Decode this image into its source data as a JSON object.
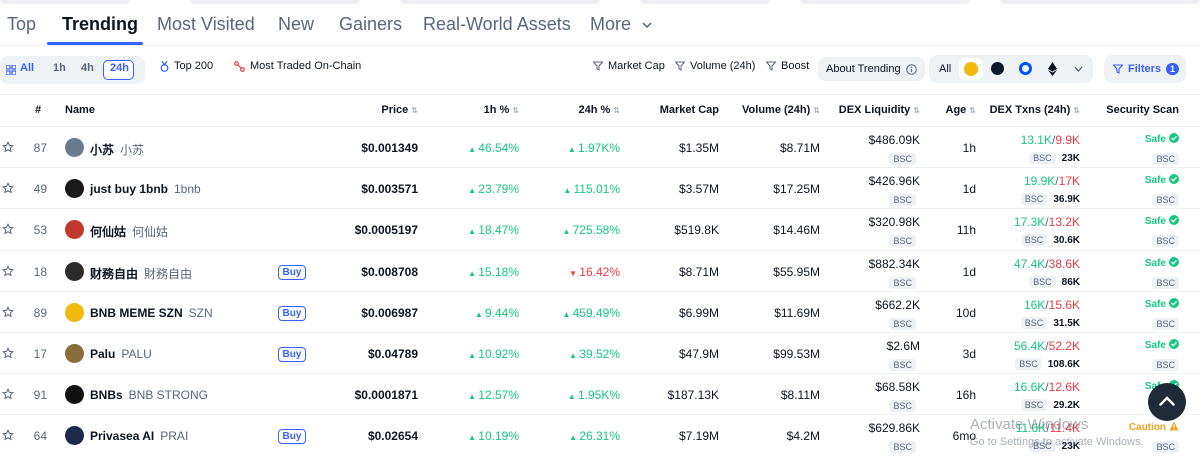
{
  "nav": {
    "tabs": [
      {
        "label": "Top",
        "active": false
      },
      {
        "label": "Trending",
        "active": true
      },
      {
        "label": "Most Visited",
        "active": false
      },
      {
        "label": "New",
        "active": false
      },
      {
        "label": "Gainers",
        "active": false
      },
      {
        "label": "Real-World Assets",
        "active": false
      }
    ],
    "more_label": "More"
  },
  "filter_bar": {
    "time_filters": [
      "All",
      "1h",
      "4h",
      "24h"
    ],
    "selected_time": "24h",
    "top200_label": "Top 200",
    "most_traded_label": "Most Traded On-Chain",
    "market_cap_label": "Market Cap",
    "volume_label": "Volume (24h)",
    "boost_label": "Boost",
    "about_label": "About Trending",
    "chain_all_label": "All",
    "filters_label": "Filters",
    "filters_count": "1"
  },
  "table": {
    "headers": {
      "rank": "#",
      "name": "Name",
      "price": "Price",
      "change_1h": "1h %",
      "change_24h": "24h %",
      "market_cap": "Market Cap",
      "volume": "Volume (24h)",
      "dex_liquidity": "DEX Liquidity",
      "age": "Age",
      "dex_txns": "DEX Txns (24h)",
      "security": "Security Scan"
    },
    "rows": [
      {
        "rank": "87",
        "name": "小苏",
        "symbol": "小苏",
        "buy": false,
        "price": "$0.001349",
        "ch1h": "46.54%",
        "ch1h_dir": "up",
        "ch24h": "1.97K%",
        "ch24h_dir": "up",
        "market_cap": "$1.35M",
        "volume": "$8.71M",
        "liquidity": "$486.09K",
        "chain": "BSC",
        "age": "1h",
        "buys": "13.1K",
        "sells": "9.9K",
        "txns_total": "23K",
        "security": "Safe",
        "logo_color": "#6b7b8f"
      },
      {
        "rank": "49",
        "name": "just buy 1bnb",
        "symbol": "1bnb",
        "buy": false,
        "price": "$0.003571",
        "ch1h": "23.79%",
        "ch1h_dir": "up",
        "ch24h": "115.01%",
        "ch24h_dir": "up",
        "market_cap": "$3.57M",
        "volume": "$17.25M",
        "liquidity": "$426.96K",
        "chain": "BSC",
        "age": "1d",
        "buys": "19.9K",
        "sells": "17K",
        "txns_total": "36.9K",
        "security": "Safe",
        "logo_color": "#1a1a1a"
      },
      {
        "rank": "53",
        "name": "何仙姑",
        "symbol": "何仙姑",
        "buy": false,
        "price": "$0.0005197",
        "ch1h": "18.47%",
        "ch1h_dir": "up",
        "ch24h": "725.58%",
        "ch24h_dir": "up",
        "market_cap": "$519.8K",
        "volume": "$14.46M",
        "liquidity": "$320.98K",
        "chain": "BSC",
        "age": "11h",
        "buys": "17.3K",
        "sells": "13.2K",
        "txns_total": "30.6K",
        "security": "Safe",
        "logo_color": "#c0392b"
      },
      {
        "rank": "18",
        "name": "财務自由",
        "symbol": "財務自由",
        "buy": true,
        "price": "$0.008708",
        "ch1h": "15.18%",
        "ch1h_dir": "up",
        "ch24h": "16.42%",
        "ch24h_dir": "down",
        "market_cap": "$8.71M",
        "volume": "$55.95M",
        "liquidity": "$882.34K",
        "chain": "BSC",
        "age": "1d",
        "buys": "47.4K",
        "sells": "38.6K",
        "txns_total": "86K",
        "security": "Safe",
        "logo_color": "#2c2c2c"
      },
      {
        "rank": "89",
        "name": "BNB MEME SZN",
        "symbol": "SZN",
        "buy": true,
        "price": "$0.006987",
        "ch1h": "9.44%",
        "ch1h_dir": "up",
        "ch24h": "459.49%",
        "ch24h_dir": "up",
        "market_cap": "$6.99M",
        "volume": "$11.69M",
        "liquidity": "$662.2K",
        "chain": "BSC",
        "age": "10d",
        "buys": "16K",
        "sells": "15.6K",
        "txns_total": "31.5K",
        "security": "Safe",
        "logo_color": "#f0b90b"
      },
      {
        "rank": "17",
        "name": "Palu",
        "symbol": "PALU",
        "buy": true,
        "price": "$0.04789",
        "ch1h": "10.92%",
        "ch1h_dir": "up",
        "ch24h": "39.52%",
        "ch24h_dir": "up",
        "market_cap": "$47.9M",
        "volume": "$99.53M",
        "liquidity": "$2.6M",
        "chain": "BSC",
        "age": "3d",
        "buys": "56.4K",
        "sells": "52.2K",
        "txns_total": "108.6K",
        "security": "Safe",
        "logo_color": "#8a6d3b"
      },
      {
        "rank": "91",
        "name": "BNBs",
        "symbol": "BNB STRONG",
        "buy": false,
        "price": "$0.0001871",
        "ch1h": "12.57%",
        "ch1h_dir": "up",
        "ch24h": "1.95K%",
        "ch24h_dir": "up",
        "market_cap": "$187.13K",
        "volume": "$8.11M",
        "liquidity": "$68.58K",
        "chain": "BSC",
        "age": "16h",
        "buys": "16.6K",
        "sells": "12.6K",
        "txns_total": "29.2K",
        "security": "Safe",
        "logo_color": "#111111"
      },
      {
        "rank": "64",
        "name": "Privasea AI",
        "symbol": "PRAI",
        "buy": true,
        "price": "$0.02654",
        "ch1h": "10.19%",
        "ch1h_dir": "up",
        "ch24h": "26.31%",
        "ch24h_dir": "up",
        "market_cap": "$7.19M",
        "volume": "$4.2M",
        "liquidity": "$629.86K",
        "chain": "BSC",
        "age": "6mo",
        "buys": "11.6K",
        "sells": "11.4K",
        "txns_total": "23K",
        "security": "Caution",
        "logo_color": "#1e2a4a"
      }
    ]
  },
  "colors": {
    "accent": "#3861fb",
    "up": "#16c784",
    "down": "#ea3943",
    "caution": "#f0a020"
  },
  "watermark": {
    "line1": "Activate Windows",
    "line2": "Go to Settings to activate Windows."
  }
}
